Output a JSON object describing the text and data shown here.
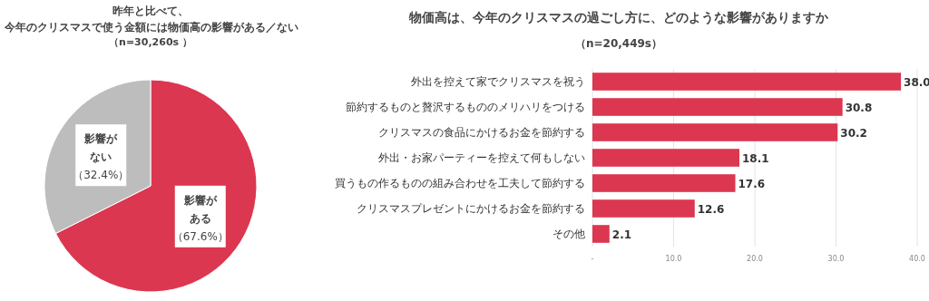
{
  "chart_data": [
    {
      "type": "pie",
      "title": "昨年と比べて、",
      "subtitle": "今年のクリスマスで使う金額には物価高の影響がある／ない",
      "annotations": [
        "（n=30,260s ）"
      ],
      "categories": [
        "影響がある",
        "影響がない"
      ],
      "values": [
        67.6,
        32.4
      ],
      "colors": [
        "#dc3750",
        "#bdbdbd"
      ],
      "value_labels": [
        "（67.6%）",
        "（32.4%）"
      ]
    },
    {
      "type": "bar",
      "orientation": "horizontal",
      "title": "物価高は、今年のクリスマスの過ごし方に、どのような影響がありますか",
      "subtitle": "（n=20,449s）",
      "categories": [
        "外出を控えて家でクリスマスを祝う",
        "節約するものと贅沢するもののメリハリをつける",
        "クリスマスの食品にかけるお金を節約する",
        "外出・お家パーティーを控えて何もしない",
        "買うもの作るものの組み合わせを工夫して節約する",
        "クリスマスプレゼントにかけるお金を節約する",
        "その他"
      ],
      "values": [
        38.0,
        30.8,
        30.2,
        18.1,
        17.6,
        12.6,
        2.1
      ],
      "value_labels": [
        "38.0",
        "30.8",
        "30.2",
        "18.1",
        "17.6",
        "12.6",
        "2.1"
      ],
      "color": "#dc3750",
      "xlim": [
        0,
        40
      ],
      "xticks": [
        {
          "value": 0,
          "label": "-"
        },
        {
          "value": 10,
          "label": "10.0"
        },
        {
          "value": 20,
          "label": "20.0"
        },
        {
          "value": 30,
          "label": "30.0"
        },
        {
          "value": 40,
          "label": "40.0"
        }
      ],
      "grid": "x"
    }
  ]
}
